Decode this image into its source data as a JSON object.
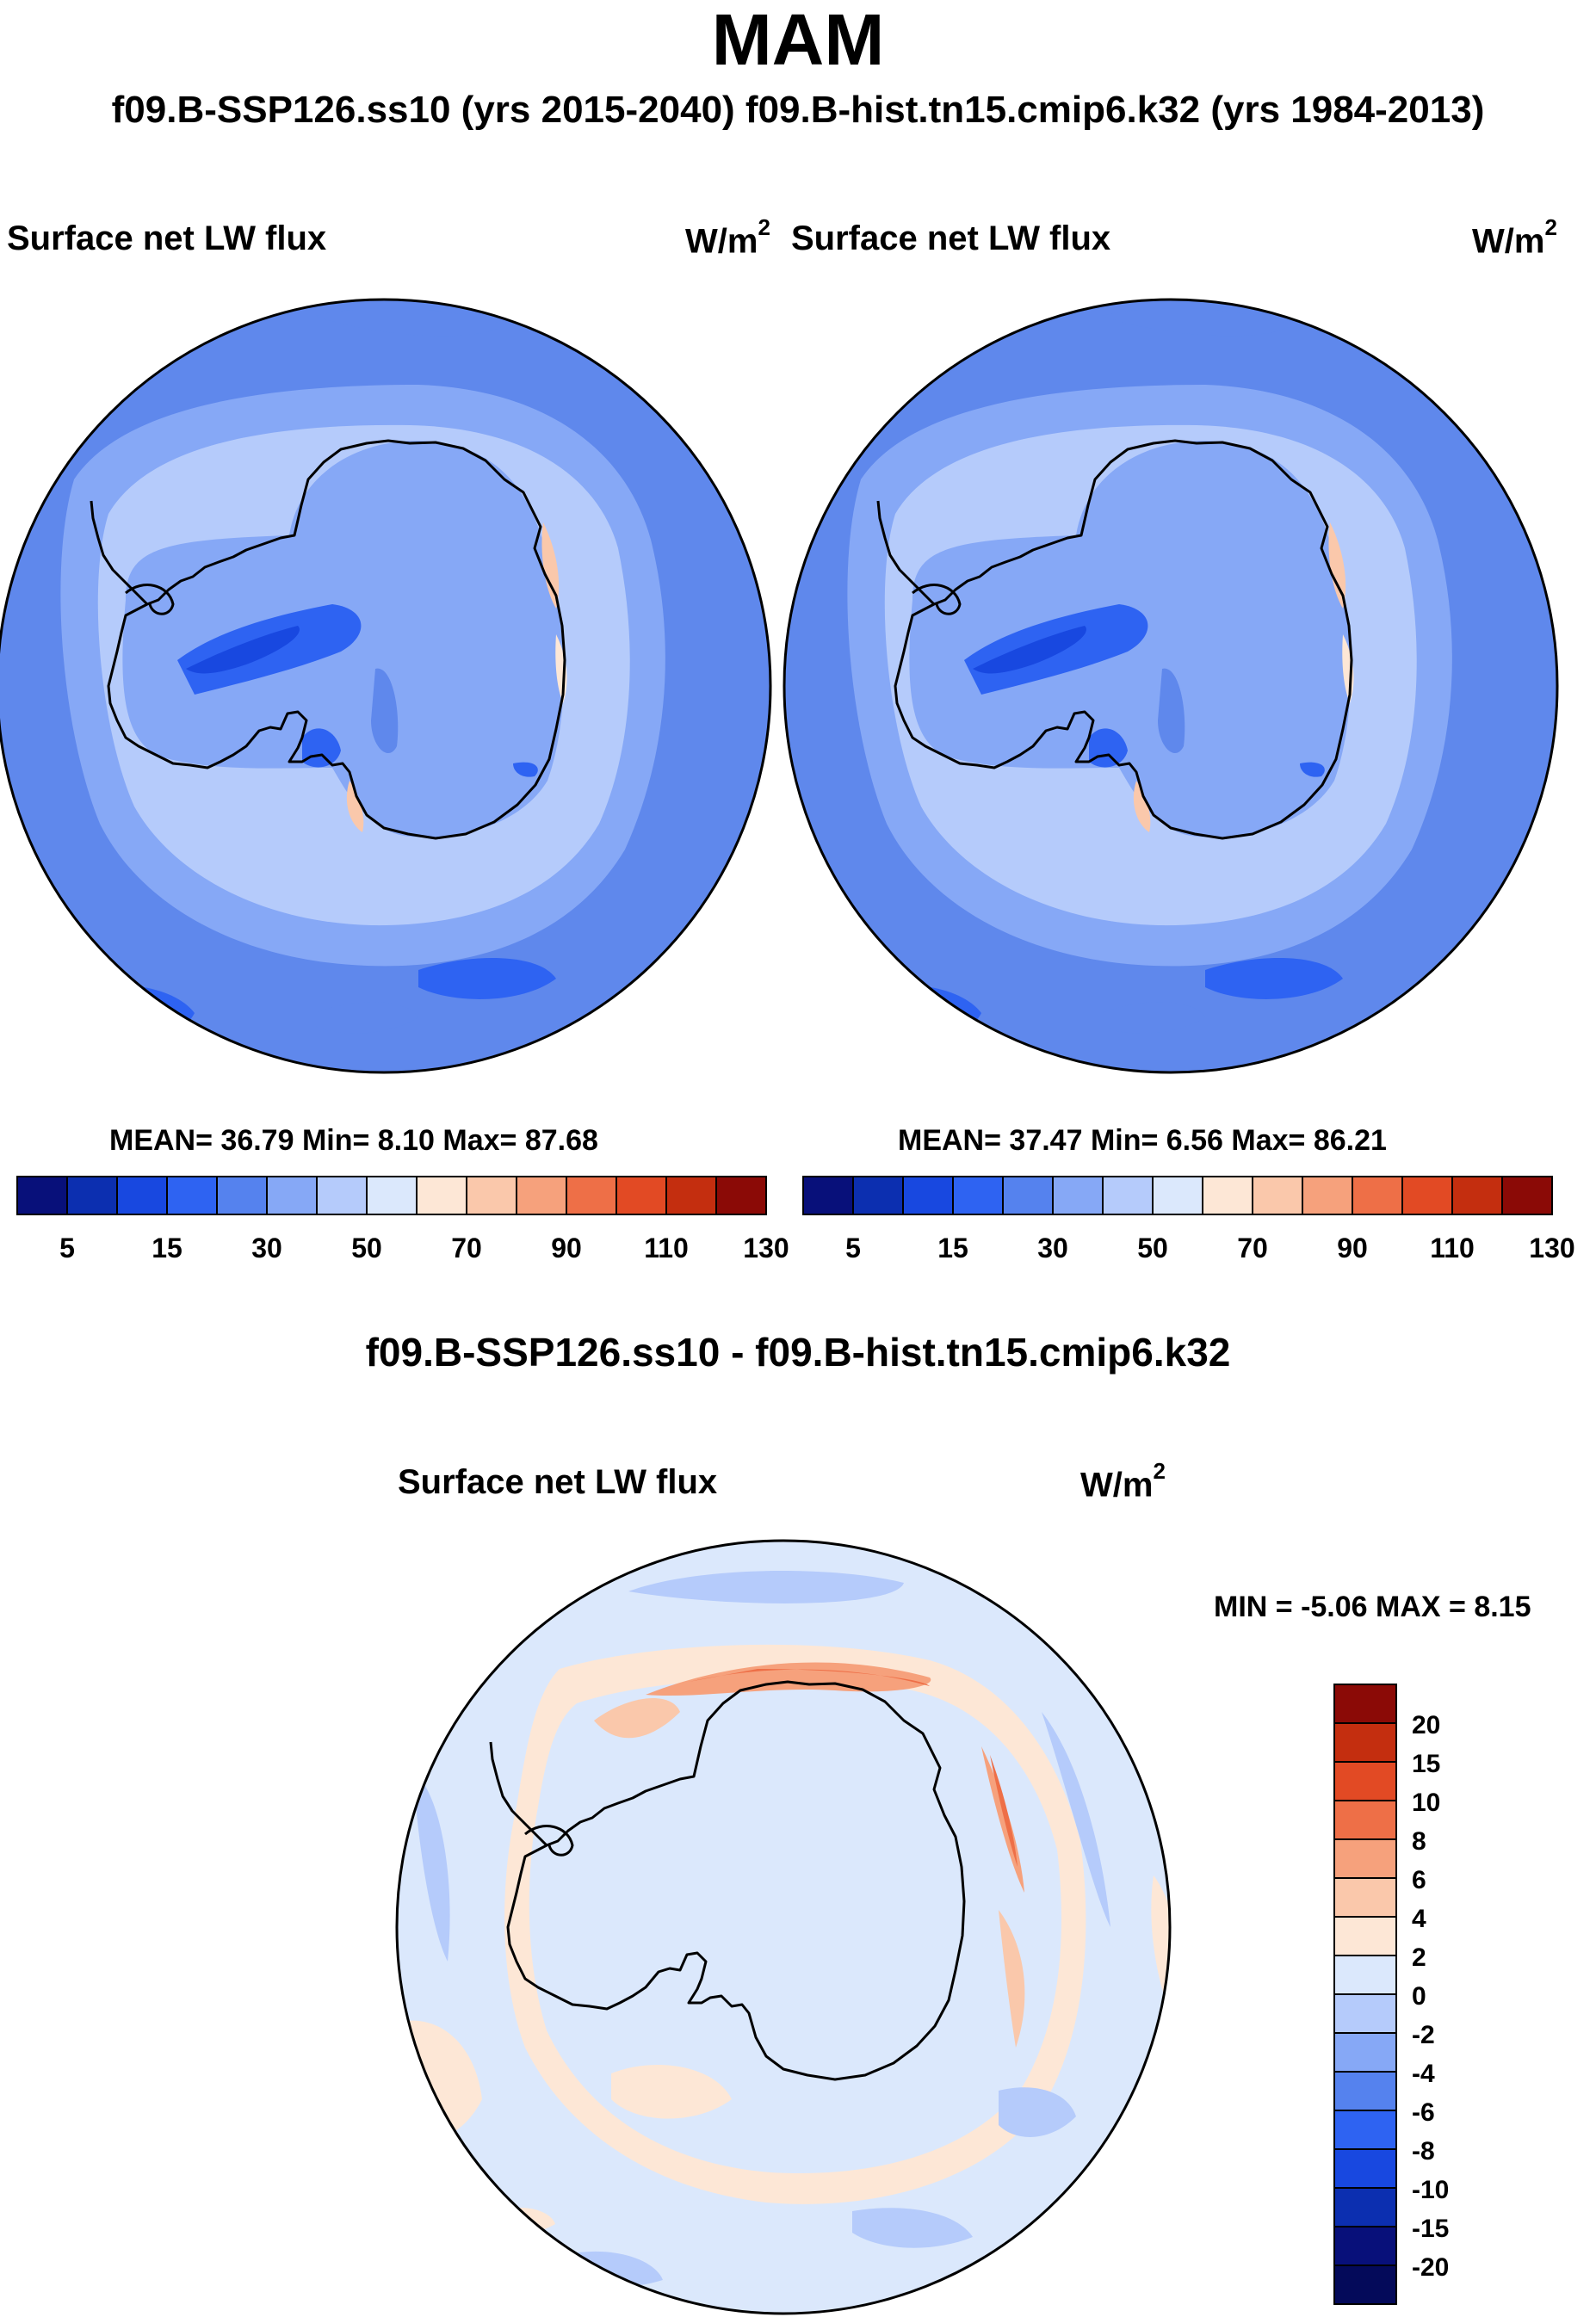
{
  "header": {
    "season": "MAM",
    "subtitle": "f09.B-SSP126.ss10 (yrs 2015-2040)  f09.B-hist.tn15.cmip6.k32 (yrs 1984-2013)"
  },
  "panels": [
    {
      "variable": "Surface net LW flux",
      "units": "W/m",
      "units_exp": "2",
      "stats_text": "MEAN=  36.79  Min=   8.10  Max=  87.68"
    },
    {
      "variable": "Surface net LW flux",
      "units": "W/m",
      "units_exp": "2",
      "stats_text": "MEAN=  37.47  Min=   6.56  Max=  86.21"
    }
  ],
  "difference": {
    "title": "f09.B-SSP126.ss10 - f09.B-hist.tn15.cmip6.k32",
    "variable": "Surface net LW flux",
    "units": "W/m",
    "units_exp": "2",
    "minmax_text": "MIN =  -5.06 MAX =   8.15"
  },
  "chart_data": [
    {
      "type": "heatmap",
      "title": "Surface net LW flux",
      "units": "W/m2",
      "projection": "south polar stereographic",
      "stats": {
        "mean": 36.79,
        "min": 8.1,
        "max": 87.68
      },
      "colorbar": {
        "tick_labels": [
          "5",
          "15",
          "30",
          "50",
          "70",
          "90",
          "110",
          "130"
        ],
        "colors": [
          "#08107a",
          "#0c2fb0",
          "#1848e0",
          "#2e63f2",
          "#5582ee",
          "#86a8f6",
          "#b5cbfb",
          "#dbe8fc",
          "#fde7d6",
          "#fac8ab",
          "#f6a17c",
          "#ee6f47",
          "#e24a24",
          "#c42e0f",
          "#8b0a06"
        ]
      }
    },
    {
      "type": "heatmap",
      "title": "Surface net LW flux",
      "units": "W/m2",
      "projection": "south polar stereographic",
      "stats": {
        "mean": 37.47,
        "min": 6.56,
        "max": 86.21
      },
      "colorbar": {
        "tick_labels": [
          "5",
          "15",
          "30",
          "50",
          "70",
          "90",
          "110",
          "130"
        ],
        "colors": [
          "#08107a",
          "#0c2fb0",
          "#1848e0",
          "#2e63f2",
          "#5582ee",
          "#86a8f6",
          "#b5cbfb",
          "#dbe8fc",
          "#fde7d6",
          "#fac8ab",
          "#f6a17c",
          "#ee6f47",
          "#e24a24",
          "#c42e0f",
          "#8b0a06"
        ]
      }
    },
    {
      "type": "heatmap",
      "title": "f09.B-SSP126.ss10 - f09.B-hist.tn15.cmip6.k32",
      "units": "W/m2",
      "projection": "south polar stereographic",
      "stats": {
        "min": -5.06,
        "max": 8.15
      },
      "colorbar": {
        "tick_labels": [
          "20",
          "15",
          "10",
          "8",
          "6",
          "4",
          "2",
          "0",
          "-2",
          "-4",
          "-6",
          "-8",
          "-10",
          "-15",
          "-20"
        ],
        "colors": [
          "#8b0a06",
          "#c42e0f",
          "#e24a24",
          "#ee6f47",
          "#f6a17c",
          "#fac8ab",
          "#fde7d6",
          "#dbe8fc",
          "#b5cbfb",
          "#86a8f6",
          "#5582ee",
          "#2e63f2",
          "#1848e0",
          "#0c2fb0",
          "#08107a",
          "#040a5a"
        ]
      }
    }
  ]
}
